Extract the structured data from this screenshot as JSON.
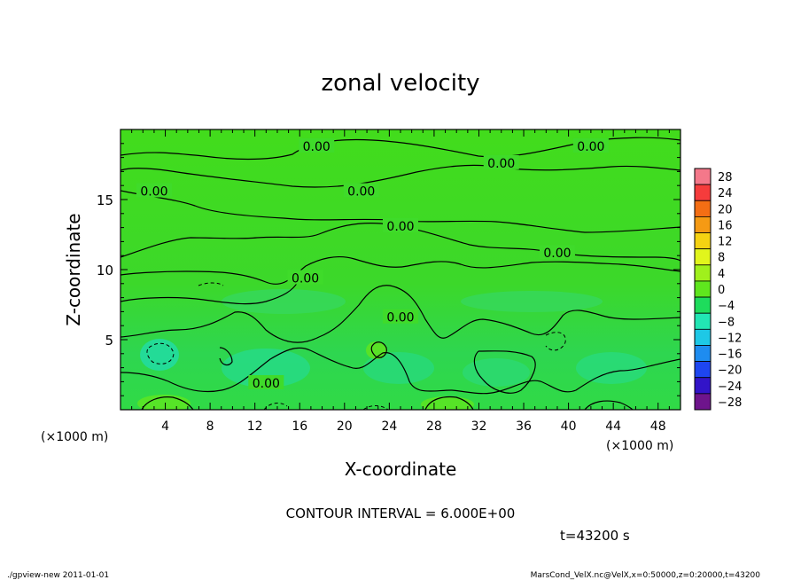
{
  "chart_data": {
    "type": "heatmap",
    "title": "zonal velocity",
    "xlabel": "X-coordinate",
    "ylabel": "Z-coordinate",
    "x_unit_label": "(×1000 m)",
    "x_unit_label_bottom": "(×1000 m)",
    "xlim": [
      0,
      50
    ],
    "ylim": [
      0,
      20
    ],
    "x_ticks": [
      4,
      8,
      12,
      16,
      20,
      24,
      28,
      32,
      36,
      40,
      44,
      48
    ],
    "y_ticks": [
      5,
      10,
      15
    ],
    "x_tick_labels": [
      "4",
      "8",
      "12",
      "16",
      "20",
      "24",
      "28",
      "32",
      "36",
      "40",
      "44",
      "48"
    ],
    "y_tick_labels": [
      "5",
      "10",
      "15"
    ],
    "colorbar_levels": [
      28,
      24,
      20,
      16,
      12,
      8,
      4,
      0,
      -4,
      -8,
      -12,
      -16,
      -20,
      -24,
      -28
    ],
    "colorbar_labels": [
      "28",
      "24",
      "20",
      "16",
      "12",
      "8",
      "4",
      "0",
      "−4",
      "−8",
      "−12",
      "−16",
      "−20",
      "−24",
      "−28"
    ],
    "colorbar_colors": [
      "#f4788a",
      "#f53c3c",
      "#f46e14",
      "#f59a14",
      "#f5d212",
      "#e1f51c",
      "#a0f01c",
      "#5fe61e",
      "#1edc5c",
      "#22e6b4",
      "#1ec8e6",
      "#1e8cf0",
      "#1e46f0",
      "#3214c8",
      "#6e148c"
    ],
    "contour_label_text": "0.00",
    "contour_labels": [
      {
        "x": 17.5,
        "z": 18.8
      },
      {
        "x": 42,
        "z": 18.8
      },
      {
        "x": 34,
        "z": 17.6
      },
      {
        "x": 3,
        "z": 15.6
      },
      {
        "x": 21.5,
        "z": 15.6
      },
      {
        "x": 25,
        "z": 13.1
      },
      {
        "x": 39,
        "z": 11.2
      },
      {
        "x": 16.5,
        "z": 9.4
      },
      {
        "x": 25,
        "z": 6.6
      },
      {
        "x": 13,
        "z": 1.9
      }
    ],
    "contour_interval_text": "CONTOUR INTERVAL = 6.000E+00",
    "time_text": "t=43200 s"
  },
  "footer": {
    "left": "./gpview-new  2011-01-01",
    "right": "MarsCond_VelX.nc@VelX,x=0:50000,z=0:20000,t=43200"
  }
}
